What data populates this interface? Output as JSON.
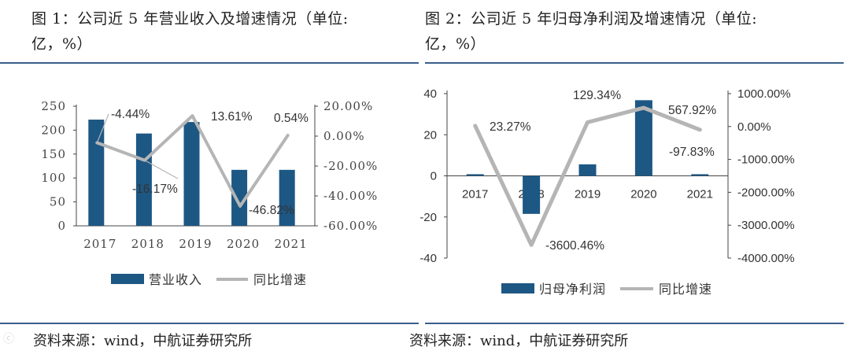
{
  "colors": {
    "bar": "#1d5784",
    "line": "#b5b5b5",
    "rule": "#3a5f89"
  },
  "watermark": "ⓒ",
  "left": {
    "title_line1": "图 1：公司近 5 年营业收入及增速情况（单位:",
    "title_line2": "亿，%）",
    "source": "资料来源：wind，中航证券研究所",
    "chart_data": {
      "type": "bar",
      "categories": [
        "2017",
        "2018",
        "2019",
        "2020",
        "2021"
      ],
      "series": [
        {
          "name": "营业收入",
          "kind": "bar",
          "axis": "left",
          "values": [
            222,
            193,
            217,
            117,
            117
          ]
        },
        {
          "name": "同比增速",
          "kind": "line",
          "axis": "right",
          "values": [
            -4.44,
            -16.17,
            13.61,
            -46.82,
            0.54
          ]
        }
      ],
      "data_labels": [
        "-4.44%",
        "-16.17%",
        "13.61%",
        "-46.82%",
        "0.54%"
      ],
      "ylim_left": [
        0,
        250
      ],
      "yticks_left": [
        "250",
        "200",
        "150",
        "100",
        "50",
        "0"
      ],
      "ylim_right": [
        -60,
        20
      ],
      "yticks_right": [
        "20.00%",
        "0.00%",
        "-20.00%",
        "-40.00%",
        "-60.00%"
      ],
      "legend": [
        "营业收入",
        "同比增速"
      ],
      "legend_position": "bottom"
    }
  },
  "right": {
    "title_line1": "图 2：公司近 5 年归母净利润及增速情况（单位:",
    "title_line2": "亿，%）",
    "source": "资料来源：wind，中航证券研究所",
    "chart_data": {
      "type": "bar",
      "categories": [
        "2017",
        "2018",
        "2019",
        "2020",
        "2021"
      ],
      "series": [
        {
          "name": "归母净利润",
          "kind": "bar",
          "axis": "left",
          "values": [
            0.8,
            -18.5,
            5.6,
            36.8,
            0.8
          ]
        },
        {
          "name": "同比增速",
          "kind": "line",
          "axis": "right",
          "values": [
            23.27,
            -3600.46,
            129.34,
            567.92,
            -97.83
          ]
        }
      ],
      "data_labels": [
        "23.27%",
        "-3600.46%",
        "129.34%",
        "567.92%",
        "-97.83%"
      ],
      "ylim_left": [
        -40,
        40
      ],
      "yticks_left": [
        "40",
        "20",
        "0",
        "-20",
        "-40"
      ],
      "ylim_right": [
        -4000,
        1000
      ],
      "yticks_right": [
        "1000.00%",
        "0.00%",
        "-1000.00%",
        "-2000.00%",
        "-3000.00%",
        "-4000.00%"
      ],
      "legend": [
        "归母净利润",
        "同比增速"
      ],
      "legend_position": "bottom"
    }
  }
}
